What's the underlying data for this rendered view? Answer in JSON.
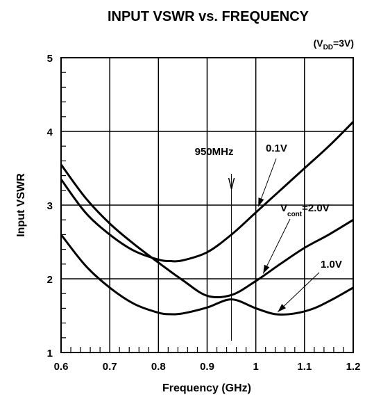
{
  "chart_data": {
    "type": "line",
    "title": "INPUT VSWR vs. FREQUENCY",
    "condition": {
      "prefix": "(V",
      "sub": "DD",
      "suffix": "=3V)"
    },
    "xlabel": "Frequency (GHz)",
    "ylabel": "Input VSWR",
    "xlim": [
      0.6,
      1.2
    ],
    "ylim": [
      1,
      5
    ],
    "xticks": [
      0.6,
      0.7,
      0.8,
      0.9,
      1.0,
      1.1,
      1.2
    ],
    "xtick_labels": [
      "0.6",
      "0.7",
      "0.8",
      "0.9",
      "1",
      "1.1",
      "1.2"
    ],
    "yticks": [
      1,
      2,
      3,
      4,
      5
    ],
    "ytick_labels": [
      "1",
      "2",
      "3",
      "4",
      "5"
    ],
    "grid": true,
    "series": [
      {
        "name": "0.1V",
        "x": [
          0.6,
          0.65,
          0.7,
          0.75,
          0.8,
          0.825,
          0.85,
          0.9,
          0.95,
          1.0,
          1.05,
          1.1,
          1.15,
          1.2
        ],
        "y": [
          3.35,
          2.9,
          2.6,
          2.38,
          2.26,
          2.24,
          2.25,
          2.36,
          2.6,
          2.9,
          3.2,
          3.5,
          3.8,
          4.13
        ]
      },
      {
        "name": "2.0V",
        "x": [
          0.6,
          0.65,
          0.7,
          0.75,
          0.8,
          0.85,
          0.9,
          0.95,
          1.0,
          1.05,
          1.1,
          1.15,
          1.2
        ],
        "y": [
          3.55,
          3.1,
          2.75,
          2.47,
          2.22,
          1.98,
          1.77,
          1.78,
          1.97,
          2.2,
          2.42,
          2.6,
          2.8
        ]
      },
      {
        "name": "1.0V",
        "x": [
          0.6,
          0.65,
          0.7,
          0.75,
          0.8,
          0.825,
          0.85,
          0.9,
          0.95,
          1.0,
          1.04,
          1.08,
          1.12,
          1.16,
          1.2
        ],
        "y": [
          2.6,
          2.18,
          1.88,
          1.66,
          1.54,
          1.52,
          1.53,
          1.61,
          1.72,
          1.6,
          1.52,
          1.53,
          1.6,
          1.73,
          1.88
        ]
      }
    ],
    "annotations": {
      "marker": {
        "label": "950MHz",
        "x": 0.95
      },
      "label_0_1": {
        "text": "0.1V",
        "x": 1.005,
        "y": 2.98
      },
      "label_vcont": {
        "prefix": "V",
        "sub": "cont",
        "suffix": "=2.0V",
        "x": 1.015,
        "y": 2.07
      },
      "label_1_0": {
        "text": "1.0V",
        "x": 1.045,
        "y": 1.55
      }
    }
  }
}
